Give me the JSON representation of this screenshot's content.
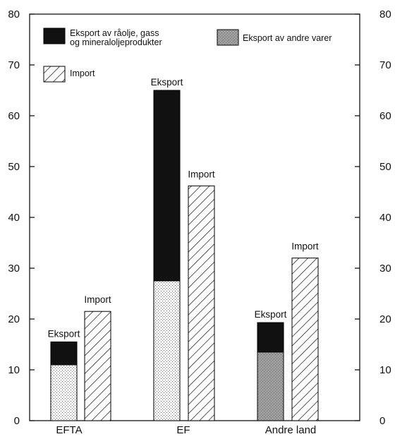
{
  "chart_data": {
    "type": "bar",
    "ylim": [
      0,
      80
    ],
    "yticks": [
      0,
      10,
      20,
      30,
      40,
      50,
      60,
      70,
      80
    ],
    "categories": [
      "EFTA",
      "EF",
      "Andre land"
    ],
    "bar_label_export": "Eksport",
    "bar_label_import": "Import",
    "series": [
      {
        "name": "Eksport av andre varer",
        "pattern": "dots",
        "values": [
          11,
          27.5,
          13.5
        ]
      },
      {
        "name": "Eksport av råolje, gass og mineraloljeprodukter",
        "pattern": "solid",
        "values": [
          4.5,
          37.5,
          5.8
        ]
      },
      {
        "name": "Import",
        "pattern": "hatch",
        "values": [
          21.5,
          46.2,
          32
        ]
      }
    ],
    "legend": {
      "crude_line1": "Eksport av råolje, gass",
      "crude_line2": "og mineraloljeprodukter",
      "other": "Eksport av andre varer",
      "import": "Import"
    },
    "colors": {
      "solid": "#111111",
      "line": "#000000"
    },
    "grid": false
  }
}
